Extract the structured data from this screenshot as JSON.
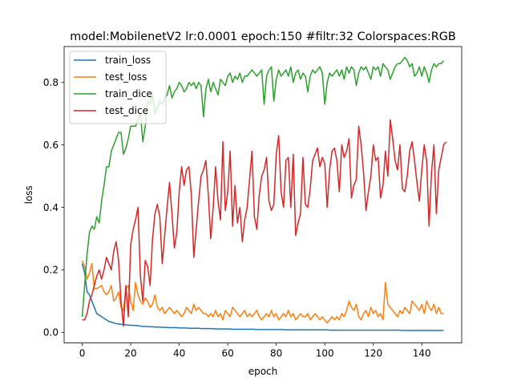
{
  "chart_data": {
    "type": "line",
    "title": "model:MobilenetV2 lr:0.0001 epoch:150 #filtr:32 Colorspaces:RGB",
    "xlabel": "epoch",
    "ylabel": "loss",
    "xlim": [
      -7.45,
      156.45
    ],
    "ylim": [
      -0.034,
      0.915
    ],
    "xticks": [
      0,
      20,
      40,
      60,
      80,
      100,
      120,
      140
    ],
    "yticks": [
      0.0,
      0.2,
      0.4,
      0.6,
      0.8
    ],
    "ytick_labels": [
      "0.0",
      "0.2",
      "0.4",
      "0.6",
      "0.8"
    ],
    "grid": false,
    "legend_position": "upper left",
    "series": [
      {
        "name": "train_loss",
        "color": "#1f77b4",
        "values": [
          0.22,
          0.19,
          0.13,
          0.12,
          0.1,
          0.08,
          0.06,
          0.055,
          0.05,
          0.045,
          0.04,
          0.035,
          0.033,
          0.03,
          0.028,
          0.027,
          0.026,
          0.025,
          0.024,
          0.023,
          0.023,
          0.022,
          0.022,
          0.021,
          0.02,
          0.019,
          0.019,
          0.018,
          0.018,
          0.018,
          0.017,
          0.017,
          0.017,
          0.016,
          0.016,
          0.016,
          0.015,
          0.015,
          0.015,
          0.015,
          0.014,
          0.014,
          0.014,
          0.014,
          0.013,
          0.013,
          0.013,
          0.013,
          0.013,
          0.012,
          0.012,
          0.012,
          0.012,
          0.012,
          0.012,
          0.011,
          0.011,
          0.011,
          0.011,
          0.011,
          0.011,
          0.011,
          0.01,
          0.01,
          0.01,
          0.01,
          0.01,
          0.01,
          0.01,
          0.01,
          0.01,
          0.01,
          0.009,
          0.009,
          0.009,
          0.009,
          0.009,
          0.009,
          0.009,
          0.009,
          0.009,
          0.009,
          0.009,
          0.009,
          0.008,
          0.008,
          0.008,
          0.008,
          0.008,
          0.008,
          0.008,
          0.008,
          0.008,
          0.008,
          0.008,
          0.008,
          0.008,
          0.008,
          0.008,
          0.008,
          0.008,
          0.008,
          0.007,
          0.007,
          0.007,
          0.007,
          0.007,
          0.007,
          0.007,
          0.007,
          0.007,
          0.007,
          0.007,
          0.007,
          0.007,
          0.007,
          0.007,
          0.007,
          0.007,
          0.007,
          0.007,
          0.007,
          0.007,
          0.007,
          0.007,
          0.007,
          0.007,
          0.007,
          0.007,
          0.007,
          0.007,
          0.007,
          0.006,
          0.006,
          0.006,
          0.006,
          0.006,
          0.006,
          0.006,
          0.006,
          0.006,
          0.006,
          0.006,
          0.006,
          0.006,
          0.006,
          0.006,
          0.006,
          0.006,
          0.006
        ]
      },
      {
        "name": "test_loss",
        "color": "#ff7f0e",
        "values": [
          0.23,
          0.21,
          0.17,
          0.19,
          0.22,
          0.14,
          0.14,
          0.145,
          0.15,
          0.13,
          0.12,
          0.13,
          0.15,
          0.1,
          0.11,
          0.13,
          0.08,
          0.07,
          0.14,
          0.15,
          0.1,
          0.07,
          0.16,
          0.12,
          0.1,
          0.09,
          0.11,
          0.1,
          0.08,
          0.09,
          0.12,
          0.08,
          0.07,
          0.08,
          0.06,
          0.07,
          0.08,
          0.07,
          0.06,
          0.07,
          0.06,
          0.05,
          0.06,
          0.08,
          0.07,
          0.06,
          0.09,
          0.07,
          0.08,
          0.07,
          0.06,
          0.06,
          0.05,
          0.06,
          0.05,
          0.07,
          0.05,
          0.06,
          0.04,
          0.07,
          0.06,
          0.05,
          0.08,
          0.07,
          0.06,
          0.05,
          0.06,
          0.07,
          0.05,
          0.06,
          0.05,
          0.06,
          0.07,
          0.05,
          0.04,
          0.05,
          0.06,
          0.05,
          0.07,
          0.05,
          0.06,
          0.04,
          0.05,
          0.06,
          0.05,
          0.07,
          0.05,
          0.06,
          0.04,
          0.05,
          0.06,
          0.05,
          0.05,
          0.06,
          0.04,
          0.05,
          0.06,
          0.05,
          0.04,
          0.05,
          0.04,
          0.03,
          0.04,
          0.05,
          0.04,
          0.05,
          0.04,
          0.06,
          0.05,
          0.07,
          0.1,
          0.08,
          0.07,
          0.09,
          0.05,
          0.04,
          0.06,
          0.07,
          0.05,
          0.08,
          0.06,
          0.07,
          0.05,
          0.06,
          0.04,
          0.16,
          0.09,
          0.08,
          0.07,
          0.06,
          0.05,
          0.07,
          0.06,
          0.08,
          0.07,
          0.06,
          0.1,
          0.09,
          0.08,
          0.07,
          0.09,
          0.06,
          0.1,
          0.08,
          0.07,
          0.09,
          0.06,
          0.08,
          0.06,
          0.06
        ]
      },
      {
        "name": "train_dice",
        "color": "#2ca02c",
        "values": [
          0.05,
          0.15,
          0.25,
          0.32,
          0.34,
          0.33,
          0.37,
          0.35,
          0.42,
          0.47,
          0.53,
          0.53,
          0.58,
          0.6,
          0.62,
          0.64,
          0.64,
          0.57,
          0.59,
          0.62,
          0.66,
          0.66,
          0.66,
          0.68,
          0.7,
          0.61,
          0.66,
          0.74,
          0.73,
          0.76,
          0.7,
          0.72,
          0.74,
          0.73,
          0.75,
          0.76,
          0.79,
          0.75,
          0.77,
          0.78,
          0.8,
          0.79,
          0.77,
          0.78,
          0.8,
          0.79,
          0.8,
          0.78,
          0.8,
          0.79,
          0.69,
          0.78,
          0.81,
          0.77,
          0.8,
          0.78,
          0.76,
          0.81,
          0.8,
          0.79,
          0.82,
          0.83,
          0.8,
          0.82,
          0.81,
          0.83,
          0.8,
          0.82,
          0.82,
          0.83,
          0.84,
          0.83,
          0.82,
          0.83,
          0.84,
          0.73,
          0.82,
          0.84,
          0.85,
          0.74,
          0.81,
          0.84,
          0.82,
          0.83,
          0.84,
          0.82,
          0.85,
          0.8,
          0.83,
          0.84,
          0.81,
          0.83,
          0.82,
          0.77,
          0.82,
          0.84,
          0.83,
          0.84,
          0.85,
          0.83,
          0.73,
          0.8,
          0.83,
          0.82,
          0.83,
          0.84,
          0.82,
          0.84,
          0.81,
          0.85,
          0.83,
          0.85,
          0.84,
          0.79,
          0.83,
          0.85,
          0.84,
          0.85,
          0.83,
          0.81,
          0.85,
          0.84,
          0.85,
          0.82,
          0.86,
          0.85,
          0.84,
          0.81,
          0.83,
          0.85,
          0.86,
          0.86,
          0.87,
          0.88,
          0.87,
          0.85,
          0.86,
          0.82,
          0.83,
          0.85,
          0.82,
          0.85,
          0.83,
          0.8,
          0.84,
          0.86,
          0.85,
          0.86,
          0.86,
          0.87
        ]
      },
      {
        "name": "test_dice",
        "color": "#d62728",
        "values": [
          0.04,
          0.04,
          0.06,
          0.1,
          0.12,
          0.15,
          0.18,
          0.2,
          0.17,
          0.2,
          0.24,
          0.22,
          0.2,
          0.26,
          0.29,
          0.23,
          0.1,
          0.02,
          0.15,
          0.05,
          0.28,
          0.33,
          0.36,
          0.4,
          0.18,
          0.1,
          0.23,
          0.21,
          0.15,
          0.3,
          0.38,
          0.41,
          0.37,
          0.22,
          0.31,
          0.4,
          0.48,
          0.38,
          0.27,
          0.32,
          0.45,
          0.53,
          0.47,
          0.52,
          0.53,
          0.44,
          0.24,
          0.33,
          0.42,
          0.5,
          0.52,
          0.55,
          0.44,
          0.3,
          0.4,
          0.53,
          0.42,
          0.36,
          0.61,
          0.39,
          0.45,
          0.58,
          0.34,
          0.47,
          0.35,
          0.4,
          0.29,
          0.36,
          0.4,
          0.49,
          0.58,
          0.37,
          0.33,
          0.44,
          0.5,
          0.52,
          0.56,
          0.42,
          0.39,
          0.41,
          0.57,
          0.63,
          0.45,
          0.4,
          0.55,
          0.56,
          0.4,
          0.57,
          0.31,
          0.35,
          0.38,
          0.56,
          0.41,
          0.4,
          0.46,
          0.55,
          0.57,
          0.59,
          0.53,
          0.56,
          0.54,
          0.4,
          0.52,
          0.58,
          0.59,
          0.55,
          0.45,
          0.6,
          0.56,
          0.58,
          0.62,
          0.43,
          0.47,
          0.49,
          0.66,
          0.6,
          0.51,
          0.39,
          0.45,
          0.5,
          0.6,
          0.55,
          0.56,
          0.43,
          0.47,
          0.58,
          0.5,
          0.68,
          0.62,
          0.55,
          0.52,
          0.6,
          0.46,
          0.45,
          0.5,
          0.58,
          0.61,
          0.55,
          0.48,
          0.42,
          0.52,
          0.6,
          0.55,
          0.34,
          0.51,
          0.6,
          0.38,
          0.52,
          0.56,
          0.6,
          0.61
        ]
      }
    ]
  }
}
